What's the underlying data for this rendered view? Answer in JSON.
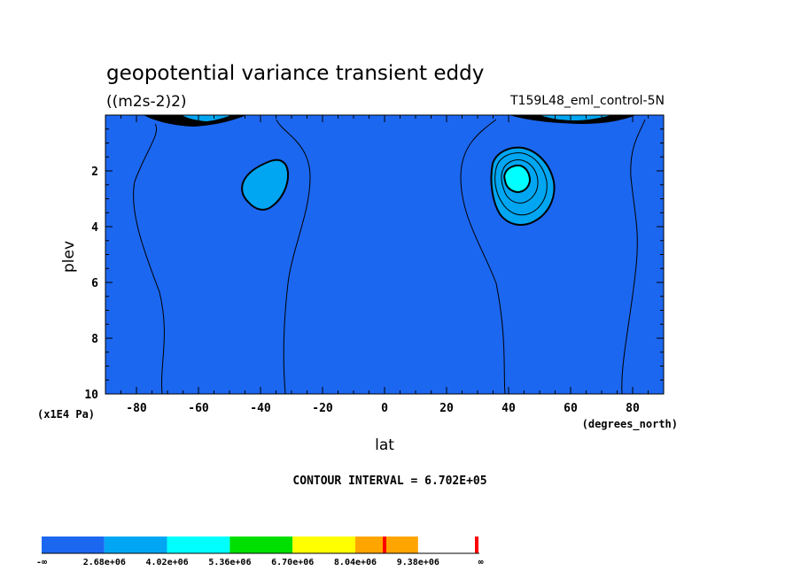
{
  "chart_data": {
    "type": "contour",
    "title": "geopotential variance transient eddy",
    "units": "((m2s-2)2)",
    "dataset": "T159L48_eml_control-5N",
    "xlabel": "lat",
    "xunits": "(degrees_north)",
    "ylabel": "plev",
    "yunits": "(x1E4 Pa)",
    "xlim": [
      -90,
      90
    ],
    "ylim": [
      10,
      0
    ],
    "x_ticks": [
      "-80",
      "-60",
      "-40",
      "-20",
      "0",
      "20",
      "40",
      "60",
      "80"
    ],
    "x_tick_values": [
      -80,
      -60,
      -40,
      -20,
      0,
      20,
      40,
      60,
      80
    ],
    "y_ticks": [
      "2",
      "4",
      "6",
      "8",
      "10"
    ],
    "y_tick_values": [
      2,
      4,
      6,
      8,
      10
    ],
    "contour_interval_text": "CONTOUR INTERVAL = 6.702E+05",
    "features": [
      {
        "name": "sh-max",
        "lat": -38,
        "plev": 2.5,
        "level": "2.68e+06 to 4.02e+06"
      },
      {
        "name": "nh-max",
        "lat": 42,
        "plev": 2.4,
        "level": "4.02e+06 to 5.36e+06"
      }
    ],
    "colorbar": {
      "labels": [
        "-∞",
        "2.68e+06",
        "4.02e+06",
        "5.36e+06",
        "6.70e+06",
        "8.04e+06",
        "9.38e+06",
        "∞"
      ],
      "colors": [
        "#1c67f0",
        "#00a6f2",
        "#00ffff",
        "#00e000",
        "#ffff00",
        "#ffa500",
        "#ff0000"
      ]
    }
  }
}
